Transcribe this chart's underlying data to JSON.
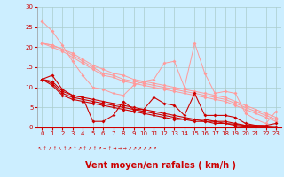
{
  "xlabel": "Vent moyen/en rafales ( km/h )",
  "background_color": "#cceeff",
  "grid_color": "#aacccc",
  "xlim": [
    -0.5,
    23.5
  ],
  "ylim": [
    0,
    30
  ],
  "xticks": [
    0,
    1,
    2,
    3,
    4,
    5,
    6,
    7,
    8,
    9,
    10,
    11,
    12,
    13,
    14,
    15,
    16,
    17,
    18,
    19,
    20,
    21,
    22,
    23
  ],
  "yticks": [
    0,
    5,
    10,
    15,
    20,
    25,
    30
  ],
  "lines_pink": [
    [
      26.5,
      24.0,
      20.5,
      16.5,
      13.0,
      10.0,
      9.5,
      8.5,
      8.0,
      10.5,
      11.5,
      12.0,
      16.0,
      16.5,
      10.0,
      21.0,
      13.5,
      8.5,
      9.0,
      8.5,
      3.5,
      2.0,
      1.0,
      4.0
    ],
    [
      21.0,
      20.5,
      19.5,
      18.5,
      17.0,
      15.5,
      14.5,
      13.5,
      13.0,
      12.0,
      11.5,
      11.0,
      10.5,
      10.0,
      9.5,
      9.0,
      8.5,
      8.0,
      7.5,
      6.5,
      5.5,
      4.5,
      3.5,
      2.5
    ],
    [
      21.0,
      20.5,
      19.5,
      18.0,
      16.5,
      15.0,
      13.5,
      13.0,
      12.0,
      11.5,
      11.0,
      10.5,
      10.0,
      9.5,
      9.0,
      8.5,
      8.0,
      7.5,
      7.0,
      6.0,
      5.0,
      4.0,
      3.0,
      2.0
    ],
    [
      21.0,
      20.0,
      19.0,
      17.5,
      16.0,
      14.5,
      13.0,
      12.5,
      11.5,
      11.0,
      10.5,
      10.0,
      9.5,
      9.0,
      8.5,
      8.0,
      7.5,
      7.0,
      6.5,
      5.5,
      4.5,
      3.5,
      2.5,
      1.5
    ]
  ],
  "lines_red": [
    [
      12.0,
      13.0,
      9.5,
      8.0,
      7.5,
      1.5,
      1.5,
      3.0,
      6.5,
      4.5,
      4.5,
      7.5,
      6.0,
      5.5,
      3.0,
      8.5,
      3.0,
      3.0,
      3.0,
      2.5,
      1.0,
      0.5,
      0.5,
      1.0
    ],
    [
      12.0,
      11.5,
      9.0,
      8.0,
      7.5,
      7.0,
      6.5,
      6.0,
      5.5,
      5.0,
      4.5,
      4.0,
      3.5,
      3.0,
      2.5,
      2.0,
      2.0,
      1.5,
      1.5,
      1.0,
      0.5,
      0.5,
      0.3,
      0.2
    ],
    [
      12.0,
      11.0,
      8.5,
      7.5,
      7.0,
      6.5,
      6.0,
      5.5,
      5.0,
      4.5,
      4.0,
      3.5,
      3.0,
      2.5,
      2.0,
      2.0,
      1.5,
      1.5,
      1.0,
      0.8,
      0.5,
      0.3,
      0.2,
      0.1
    ],
    [
      12.0,
      10.5,
      8.0,
      7.0,
      6.5,
      6.0,
      5.5,
      5.0,
      4.5,
      4.0,
      3.5,
      3.0,
      2.5,
      2.0,
      2.0,
      1.5,
      1.5,
      1.0,
      1.0,
      0.5,
      0.3,
      0.2,
      0.1,
      0.1
    ]
  ],
  "pink_color": "#ff9999",
  "red_color": "#cc0000",
  "marker_size": 2,
  "xlabel_color": "#cc0000",
  "tick_color": "#cc0000",
  "axis_label_fontsize": 7,
  "tick_fontsize": 5,
  "arrows": [
    "⇖",
    "↑",
    "↗",
    "↑",
    "⇖",
    "↑",
    "↗",
    "↑",
    "↗",
    "↑",
    "↗",
    "↑",
    "↗",
    "→",
    "↑",
    "→",
    "→",
    "→",
    "↗",
    "↗",
    "↗",
    "↗",
    "↗",
    "↗"
  ]
}
